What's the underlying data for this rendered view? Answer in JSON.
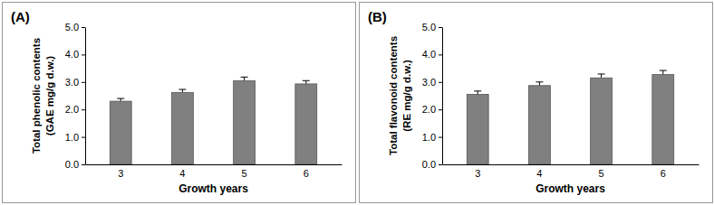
{
  "chart_data": [
    {
      "type": "bar",
      "title": "(A)",
      "ylabel": [
        "Total phenolic contents",
        "(GAE mg/g d.w.)"
      ],
      "xlabel": "Growth years",
      "categories": [
        "3",
        "4",
        "5",
        "6"
      ],
      "values": [
        2.3,
        2.62,
        3.05,
        2.93
      ],
      "errors": [
        0.1,
        0.11,
        0.13,
        0.12
      ],
      "color": "#808080",
      "ylim": [
        0,
        5
      ],
      "yticks": [
        {
          "value": 0,
          "label": "0.0"
        },
        {
          "value": 1,
          "label": "1.0"
        },
        {
          "value": 2,
          "label": "2.0"
        },
        {
          "value": 3,
          "label": "3.0"
        },
        {
          "value": 4,
          "label": "4.0"
        },
        {
          "value": 5,
          "label": "5.0"
        }
      ],
      "grid": false
    },
    {
      "type": "bar",
      "title": "(B)",
      "ylabel": [
        "Total flavonoid contents",
        "(RE mg/g d.w.)"
      ],
      "xlabel": "Growth years",
      "categories": [
        "3",
        "4",
        "5",
        "6"
      ],
      "values": [
        2.55,
        2.87,
        3.15,
        3.27
      ],
      "errors": [
        0.12,
        0.13,
        0.14,
        0.15
      ],
      "color": "#808080",
      "ylim": [
        0,
        5
      ],
      "yticks": [
        {
          "value": 0,
          "label": "0.0"
        },
        {
          "value": 1,
          "label": "1.0"
        },
        {
          "value": 2,
          "label": "2.0"
        },
        {
          "value": 3,
          "label": "3.0"
        },
        {
          "value": 4,
          "label": "4.0"
        },
        {
          "value": 5,
          "label": "5.0"
        }
      ],
      "grid": false
    }
  ]
}
